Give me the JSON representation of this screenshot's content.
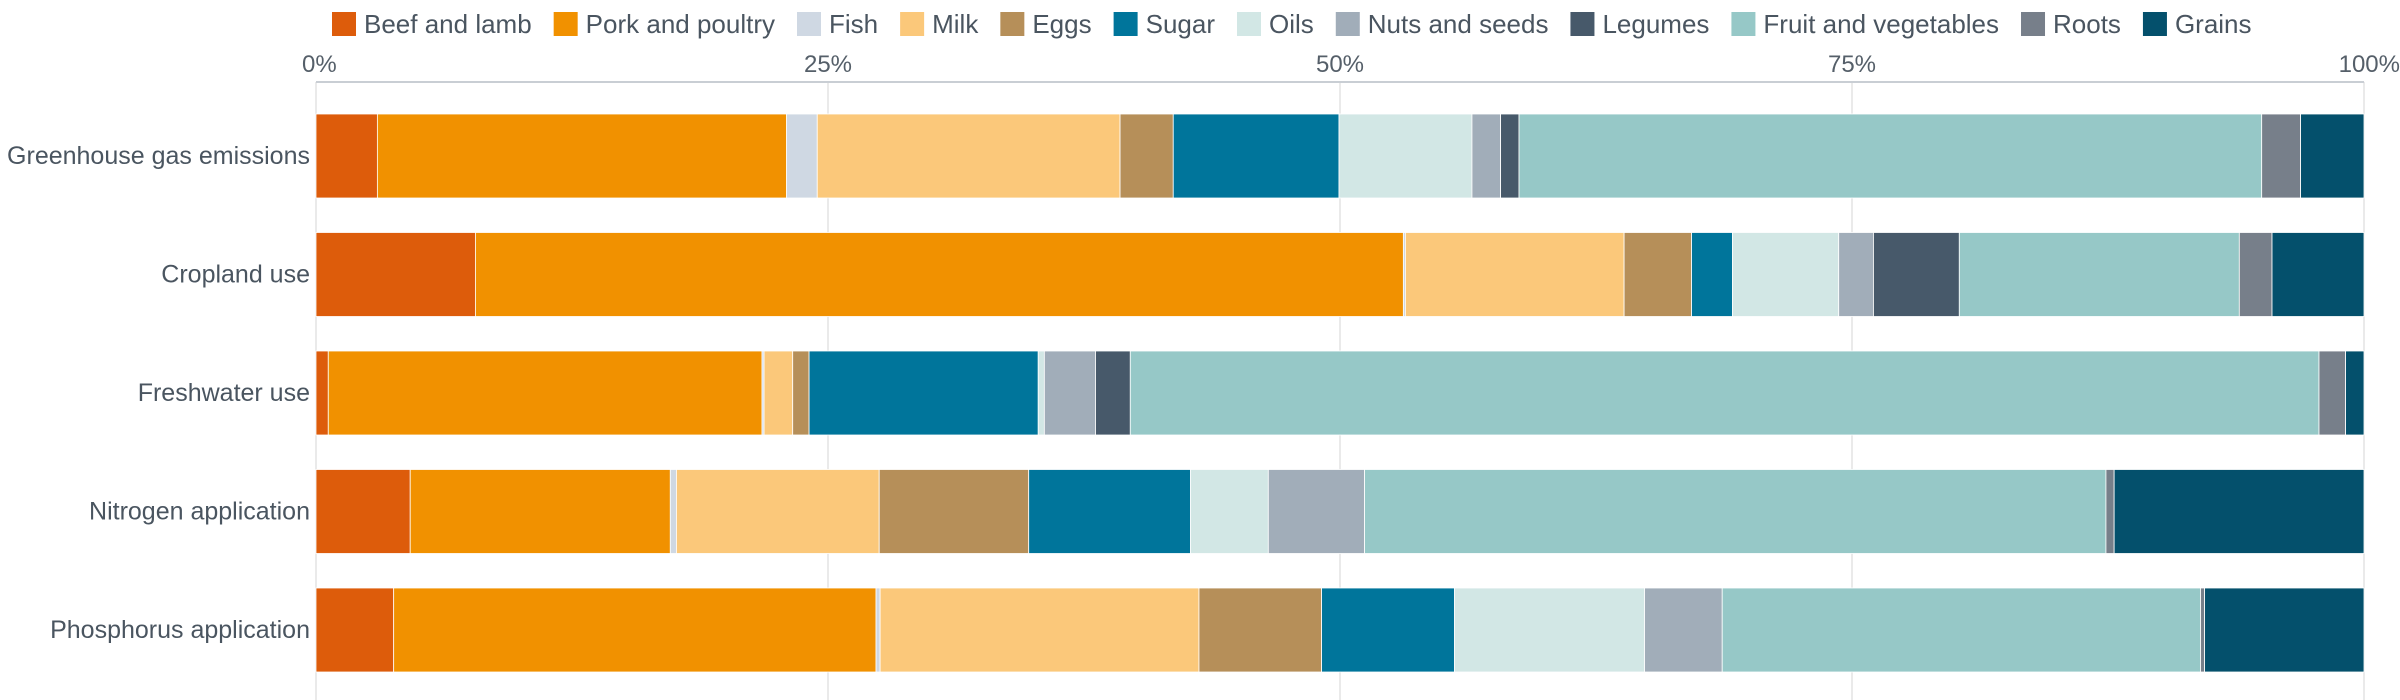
{
  "chart_data": {
    "type": "bar",
    "orientation": "horizontal",
    "stacked": true,
    "normalized": true,
    "categories": [
      "Greenhouse gas emissions",
      "Cropland use",
      "Freshwater use",
      "Nitrogen application",
      "Phosphorus application"
    ],
    "x_ticks": [
      "0%",
      "25%",
      "50%",
      "75%",
      "100%"
    ],
    "xlim": [
      0,
      100
    ],
    "grid": "vertical",
    "legend_position": "top",
    "series": [
      {
        "name": "Beef and lamb",
        "color": "#dd5c0b",
        "values": [
          3.0,
          7.8,
          0.6,
          4.6,
          3.8
        ]
      },
      {
        "name": "Pork and poultry",
        "color": "#f19100",
        "values": [
          20.0,
          45.4,
          21.2,
          12.7,
          23.6
        ]
      },
      {
        "name": "Fish",
        "color": "#cfd8e3",
        "values": [
          1.5,
          0.1,
          0.1,
          0.3,
          0.2
        ]
      },
      {
        "name": "Milk",
        "color": "#fbc87a",
        "values": [
          14.8,
          10.7,
          1.4,
          9.9,
          15.6
        ]
      },
      {
        "name": "Eggs",
        "color": "#b68f59",
        "values": [
          2.6,
          3.3,
          0.8,
          7.3,
          6.0
        ]
      },
      {
        "name": "Sugar",
        "color": "#00759b",
        "values": [
          8.1,
          2.0,
          11.2,
          7.9,
          6.5
        ]
      },
      {
        "name": "Oils",
        "color": "#d2e7e5",
        "values": [
          6.5,
          5.2,
          0.3,
          3.8,
          9.3
        ]
      },
      {
        "name": "Nuts and seeds",
        "color": "#a1adb9",
        "values": [
          1.4,
          1.7,
          2.5,
          4.7,
          3.8
        ]
      },
      {
        "name": "Legumes",
        "color": "#47596a",
        "values": [
          0.9,
          4.2,
          1.7,
          0.0,
          0.0
        ]
      },
      {
        "name": "Fruit and vegetables",
        "color": "#96c8c7",
        "values": [
          36.3,
          13.7,
          58.1,
          36.2,
          23.4
        ]
      },
      {
        "name": "Roots",
        "color": "#777f8a",
        "values": [
          1.9,
          1.6,
          1.3,
          0.4,
          0.2
        ]
      },
      {
        "name": "Grains",
        "color": "#04506c",
        "values": [
          3.1,
          4.5,
          0.9,
          12.2,
          7.8
        ]
      }
    ]
  }
}
